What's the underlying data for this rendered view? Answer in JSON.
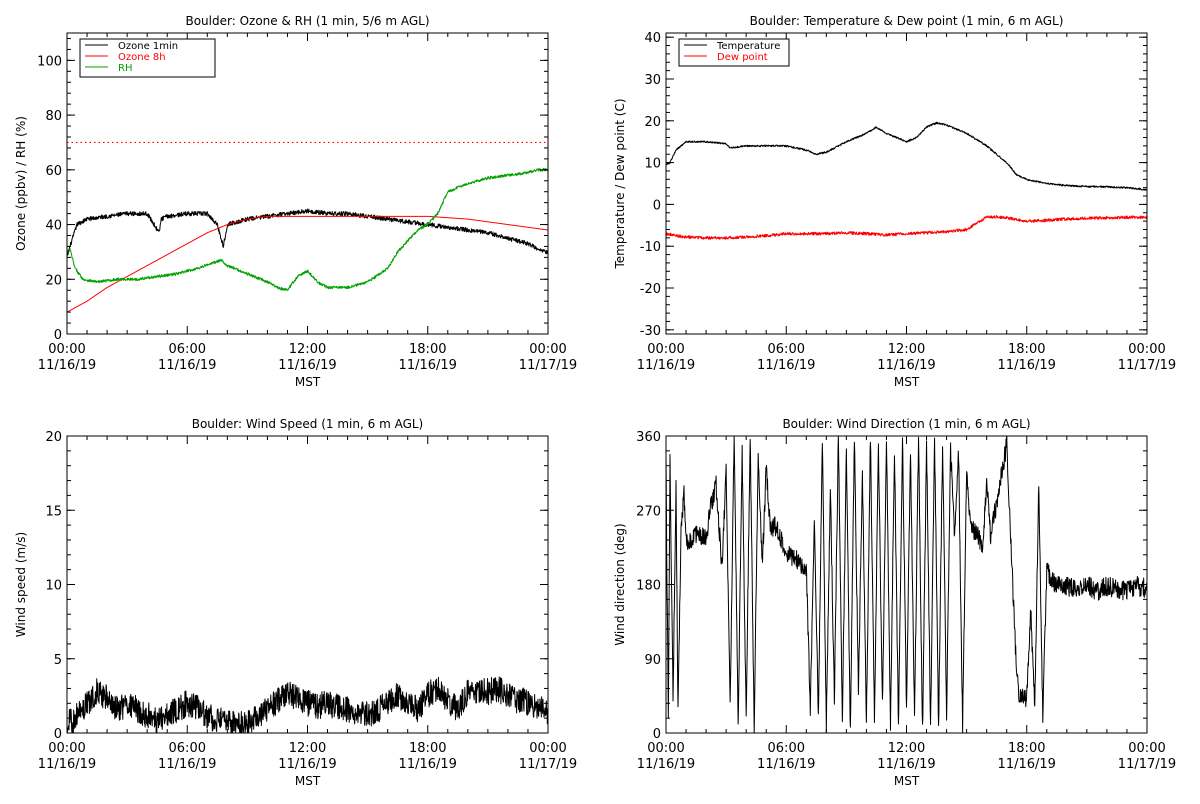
{
  "chart_data": [
    {
      "type": "line",
      "title": "Boulder: Ozone & RH (1 min, 5/6 m AGL)",
      "xlabel": "MST",
      "ylabel": "Ozone (ppbv) / RH (%)",
      "xlim": [
        "00:00 11/16/19",
        "00:00 11/17/19"
      ],
      "ylim": [
        0,
        110
      ],
      "yticks": [
        0,
        20,
        40,
        60,
        80,
        100
      ],
      "xticks": [
        {
          "time": "00:00",
          "date": "11/16/19"
        },
        {
          "time": "06:00",
          "date": "11/16/19"
        },
        {
          "time": "12:00",
          "date": "11/16/19"
        },
        {
          "time": "18:00",
          "date": "11/16/19"
        },
        {
          "time": "00:00",
          "date": "11/17/19"
        }
      ],
      "legend": "top-left",
      "reference_line": {
        "y": 70,
        "color": "#ff0000",
        "style": "dotted"
      },
      "series": [
        {
          "name": "Ozone 1min",
          "color": "#000000",
          "noise": 0.8,
          "x": [
            0,
            0.15,
            0.5,
            1,
            2,
            3,
            4,
            4.6,
            4.7,
            5,
            6,
            7,
            7.5,
            7.8,
            8,
            9,
            10,
            11,
            12,
            13,
            14,
            15,
            16,
            17,
            18,
            19,
            20,
            21,
            22,
            23,
            23.8,
            24
          ],
          "y": [
            28,
            32,
            40,
            42,
            43,
            44,
            44,
            37,
            42,
            43,
            44,
            44,
            40,
            32,
            40,
            42,
            43,
            44,
            45,
            44,
            44,
            43,
            42,
            41,
            40,
            39,
            38,
            37,
            35,
            33,
            30,
            30
          ]
        },
        {
          "name": "Ozone 8h",
          "color": "#ff0000",
          "noise": 0,
          "x": [
            0,
            1,
            2,
            3,
            4,
            5,
            6,
            7,
            8,
            9,
            10,
            11,
            12,
            13,
            14,
            15,
            16,
            17,
            18,
            19,
            20,
            21,
            22,
            23,
            24
          ],
          "y": [
            8,
            12,
            17,
            21,
            25,
            29,
            33,
            37,
            40,
            42,
            43,
            43,
            43,
            43,
            43,
            43,
            43,
            43,
            43,
            42.5,
            42,
            41,
            40,
            39,
            38
          ]
        },
        {
          "name": "RH",
          "color": "#00a000",
          "noise": 0.5,
          "x": [
            0,
            0.15,
            0.4,
            0.8,
            1.5,
            2.5,
            3.5,
            4.5,
            5.5,
            6.5,
            7.3,
            7.7,
            8,
            9,
            10,
            10.5,
            11,
            11.5,
            12,
            12.5,
            13,
            14,
            15,
            16,
            16.5,
            17,
            17.5,
            18,
            18.5,
            19,
            20,
            21,
            22,
            23,
            23.5,
            24
          ],
          "y": [
            30,
            31,
            24,
            20,
            19,
            20,
            20,
            21,
            22,
            24,
            26,
            27,
            25,
            22,
            19,
            17,
            16,
            21,
            23,
            19,
            17,
            17,
            19,
            24,
            30,
            34,
            38,
            40,
            44,
            52,
            55,
            57,
            58,
            59,
            60,
            60
          ]
        }
      ]
    },
    {
      "type": "line",
      "title": "Boulder: Temperature & Dew point (1 min, 6 m AGL)",
      "xlabel": "MST",
      "ylabel": "Temperature / Dew point (C)",
      "xlim": [
        "00:00 11/16/19",
        "00:00 11/17/19"
      ],
      "ylim": [
        -31,
        41
      ],
      "yticks": [
        -30,
        -20,
        -10,
        0,
        10,
        20,
        30,
        40
      ],
      "xticks": [
        {
          "time": "00:00",
          "date": "11/16/19"
        },
        {
          "time": "06:00",
          "date": "11/16/19"
        },
        {
          "time": "12:00",
          "date": "11/16/19"
        },
        {
          "time": "18:00",
          "date": "11/16/19"
        },
        {
          "time": "00:00",
          "date": "11/17/19"
        }
      ],
      "legend": "top-left",
      "series": [
        {
          "name": "Temperature",
          "color": "#000000",
          "noise": 0.2,
          "x": [
            0,
            0.2,
            0.5,
            1,
            2,
            3,
            3.2,
            4,
            5,
            6,
            7,
            7.5,
            8,
            9,
            10,
            10.5,
            11,
            12,
            12.5,
            13,
            13.5,
            14,
            15,
            16,
            17,
            17.5,
            18,
            19,
            20,
            21,
            22,
            23,
            24
          ],
          "y": [
            9.5,
            10,
            13,
            15,
            15,
            14.5,
            13.5,
            14,
            14,
            14,
            13,
            12,
            12.5,
            15,
            17,
            18.5,
            17,
            15,
            16,
            18.5,
            19.5,
            19,
            17,
            14,
            10,
            7,
            6,
            5,
            4.5,
            4.3,
            4.2,
            4,
            3.5
          ]
        },
        {
          "name": "Dew point",
          "color": "#ff0000",
          "noise": 0.35,
          "x": [
            0,
            0.5,
            1,
            2,
            3,
            4,
            5,
            6,
            7,
            8,
            9,
            10,
            11,
            12,
            13,
            14,
            15,
            15.5,
            16,
            16.5,
            17,
            18,
            19,
            20,
            21,
            22,
            23,
            24
          ],
          "y": [
            -7,
            -7.5,
            -7.8,
            -8,
            -8,
            -7.8,
            -7.5,
            -7,
            -7,
            -7,
            -6.8,
            -7,
            -7.3,
            -7,
            -6.8,
            -6.5,
            -6,
            -4.5,
            -3,
            -3,
            -3.2,
            -4,
            -3.8,
            -3.5,
            -3.3,
            -3.2,
            -3.1,
            -3
          ]
        }
      ]
    },
    {
      "type": "line",
      "title": "Boulder: Wind Speed (1 min, 6 m AGL)",
      "xlabel": "MST",
      "ylabel": "Wind speed (m/s)",
      "xlim": [
        "00:00 11/16/19",
        "00:00 11/17/19"
      ],
      "ylim": [
        0,
        20
      ],
      "yticks": [
        0,
        5,
        10,
        15,
        20
      ],
      "xticks": [
        {
          "time": "00:00",
          "date": "11/16/19"
        },
        {
          "time": "06:00",
          "date": "11/16/19"
        },
        {
          "time": "12:00",
          "date": "11/16/19"
        },
        {
          "time": "18:00",
          "date": "11/16/19"
        },
        {
          "time": "00:00",
          "date": "11/17/19"
        }
      ],
      "series": [
        {
          "name": "",
          "color": "#000000",
          "noise": 0.9,
          "x": [
            0,
            0.5,
            1,
            1.5,
            2,
            2.5,
            3,
            3.5,
            4,
            4.5,
            5,
            5.5,
            6,
            6.5,
            7,
            7.5,
            8,
            9,
            10,
            10.5,
            11,
            11.5,
            12,
            12.5,
            13,
            14,
            15,
            15.5,
            16,
            16.5,
            17,
            17.5,
            18,
            18.5,
            19,
            19.5,
            20,
            20.5,
            21,
            21.5,
            22,
            22.5,
            23,
            23.5,
            24
          ],
          "y": [
            0.5,
            1.2,
            2,
            2.8,
            2.3,
            1.6,
            1.8,
            1.6,
            1.2,
            0.8,
            1.1,
            1.6,
            2,
            1.8,
            1.1,
            0.9,
            0.6,
            0.7,
            1.5,
            2.2,
            2.6,
            2.3,
            2,
            1.8,
            2,
            1.6,
            1.2,
            1.5,
            2.1,
            2.5,
            2.2,
            1.6,
            2.6,
            2.9,
            2.2,
            1.6,
            2.7,
            2.9,
            2.8,
            3,
            2.5,
            2.2,
            2.1,
            1.8,
            1.5
          ]
        }
      ]
    },
    {
      "type": "line",
      "title": "Boulder: Wind Direction (1 min, 6 m AGL)",
      "xlabel": "MST",
      "ylabel": "Wind direction (deg)",
      "xlim": [
        "00:00 11/16/19",
        "00:00 11/17/19"
      ],
      "ylim": [
        0,
        360
      ],
      "yticks": [
        0,
        90,
        180,
        270,
        360
      ],
      "xticks": [
        {
          "time": "00:00",
          "date": "11/16/19"
        },
        {
          "time": "06:00",
          "date": "11/16/19"
        },
        {
          "time": "12:00",
          "date": "11/16/19"
        },
        {
          "time": "18:00",
          "date": "11/16/19"
        },
        {
          "time": "00:00",
          "date": "11/17/19"
        }
      ],
      "series": [
        {
          "name": "",
          "color": "#000000",
          "noise": 12,
          "x": [
            0,
            0.05,
            0.12,
            0.2,
            0.35,
            0.5,
            0.6,
            0.75,
            0.9,
            1,
            1.5,
            2,
            2.2,
            2.5,
            2.8,
            3,
            3.2,
            3.4,
            3.6,
            3.8,
            4,
            4.2,
            4.4,
            4.6,
            4.8,
            5,
            5.2,
            5.5,
            6,
            6.5,
            7,
            7.2,
            7.4,
            7.6,
            7.8,
            8,
            8.2,
            8.4,
            8.6,
            8.8,
            9,
            9.2,
            9.4,
            9.6,
            9.8,
            10,
            10.2,
            10.4,
            10.6,
            10.8,
            11,
            11.2,
            11.4,
            11.6,
            11.8,
            12,
            12.2,
            12.4,
            12.6,
            12.8,
            13,
            13.2,
            13.4,
            13.6,
            13.8,
            14,
            14.2,
            14.4,
            14.6,
            14.8,
            15,
            15.2,
            15.5,
            15.8,
            16,
            16.2,
            16.5,
            17,
            17.2,
            17.4,
            17.6,
            17.8,
            18,
            18.2,
            18.4,
            18.6,
            18.8,
            19,
            19.2,
            19.5,
            20,
            20.5,
            21,
            21.5,
            22,
            22.5,
            23,
            23.5,
            24
          ],
          "y": [
            330,
            180,
            20,
            330,
            40,
            300,
            20,
            250,
            290,
            230,
            240,
            235,
            270,
            300,
            200,
            320,
            30,
            360,
            10,
            340,
            20,
            360,
            5,
            340,
            200,
            320,
            250,
            250,
            220,
            210,
            200,
            30,
            260,
            20,
            350,
            10,
            300,
            40,
            360,
            20,
            340,
            0,
            360,
            50,
            320,
            10,
            360,
            20,
            350,
            30,
            360,
            10,
            345,
            5,
            360,
            30,
            340,
            20,
            360,
            0,
            355,
            10,
            360,
            5,
            350,
            20,
            345,
            240,
            340,
            10,
            320,
            250,
            240,
            230,
            300,
            240,
            280,
            350,
            240,
            120,
            40,
            50,
            40,
            150,
            30,
            300,
            20,
            200,
            185,
            180,
            178,
            175,
            180,
            172,
            178,
            175,
            172,
            178,
            175
          ]
        }
      ]
    }
  ]
}
